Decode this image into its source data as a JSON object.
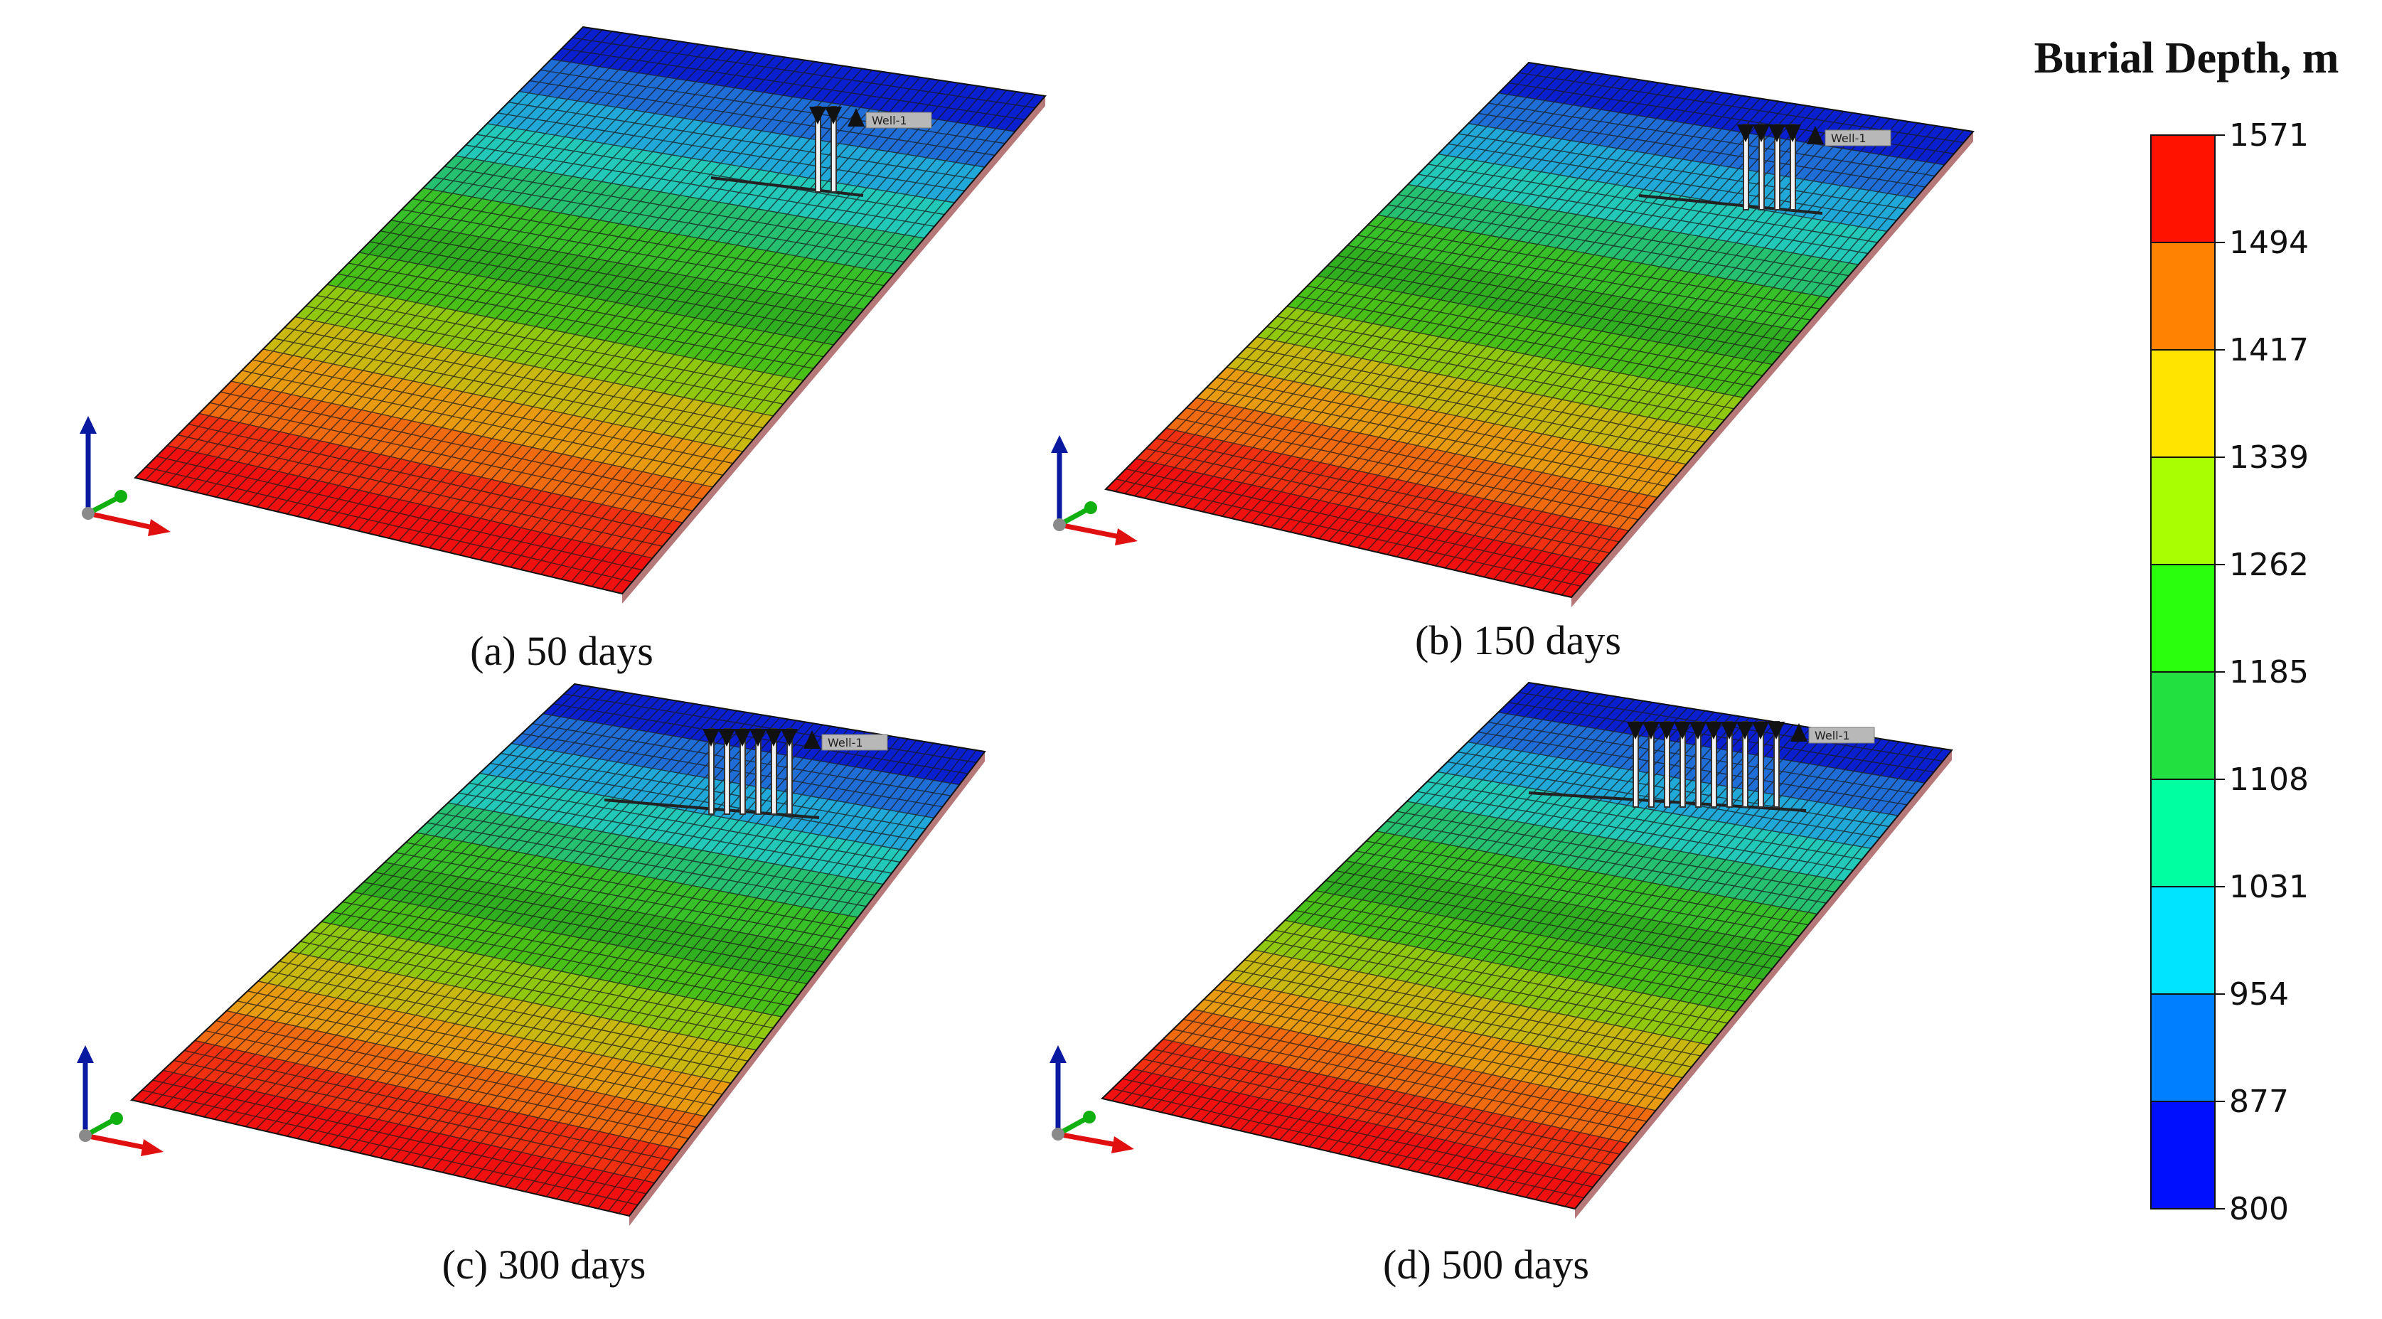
{
  "legend": {
    "title": "Burial Depth, m",
    "ticks": [
      "1571",
      "1494",
      "1417",
      "1339",
      "1262",
      "1185",
      "1108",
      "1031",
      "954",
      "877",
      "800"
    ],
    "colors": [
      "#ff1200",
      "#ff8200",
      "#ffe400",
      "#a8ff00",
      "#2aff0c",
      "#22e040",
      "#00ffa0",
      "#00e4ff",
      "#0080ff",
      "#0010ff"
    ]
  },
  "band_colors": [
    "#0a1fd0",
    "#1f6ed8",
    "#20a8d8",
    "#22c8b8",
    "#25c070",
    "#38c028",
    "#30b020",
    "#48c018",
    "#90c810",
    "#c8b810",
    "#e89a10",
    "#f06a10",
    "#f03010",
    "#f01010"
  ],
  "panels": [
    {
      "caption": "(a) 50 days",
      "well_label": "Well-1",
      "fractures": 2
    },
    {
      "caption": "(b) 150 days",
      "well_label": "Well-1",
      "fractures": 4
    },
    {
      "caption": "(c) 300 days",
      "well_label": "Well-1",
      "fractures": 6
    },
    {
      "caption": "(d) 500 days",
      "well_label": "Well-1",
      "fractures": 10
    }
  ],
  "axis_colors": {
    "z": "#0a1aa0",
    "y": "#10b010",
    "x": "#e01010",
    "origin": "#8a8a8a"
  }
}
